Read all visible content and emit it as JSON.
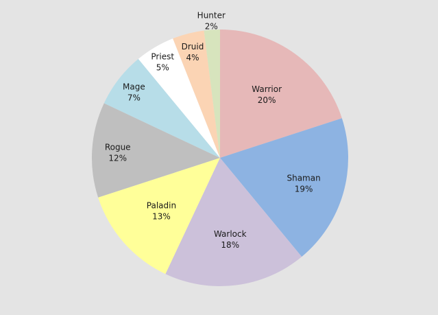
{
  "chart_data": {
    "type": "pie",
    "title": "",
    "start_angle_deg": 0,
    "direction": "clockwise",
    "slices": [
      {
        "label": "Warrior",
        "value": 20,
        "value_label": "20%",
        "color": "#e6b8b8"
      },
      {
        "label": "Shaman",
        "value": 19,
        "value_label": "19%",
        "color": "#8db3e2"
      },
      {
        "label": "Warlock",
        "value": 18,
        "value_label": "18%",
        "color": "#ccc1da"
      },
      {
        "label": "Paladin",
        "value": 13,
        "value_label": "13%",
        "color": "#ffff99"
      },
      {
        "label": "Rogue",
        "value": 12,
        "value_label": "12%",
        "color": "#bfbfbf"
      },
      {
        "label": "Mage",
        "value": 7,
        "value_label": "7%",
        "color": "#b7dde8"
      },
      {
        "label": "Priest",
        "value": 5,
        "value_label": "5%",
        "color": "#ffffff"
      },
      {
        "label": "Druid",
        "value": 4,
        "value_label": "4%",
        "color": "#fbd4b4"
      },
      {
        "label": "Hunter",
        "value": 2,
        "value_label": "2%",
        "color": "#d7e4bd"
      }
    ]
  }
}
